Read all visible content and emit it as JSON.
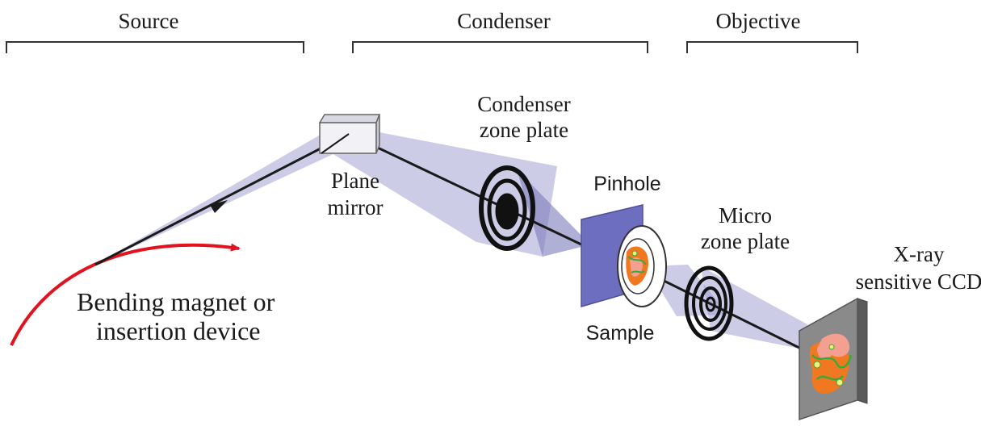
{
  "sections": {
    "source": "Source",
    "condenser": "Condenser",
    "objective": "Objective"
  },
  "labels": {
    "source_device_line1": "Bending magnet or",
    "source_device_line2": "insertion device",
    "mirror_line1": "Plane",
    "mirror_line2": "mirror",
    "condenser_zp_line1": "Condenser",
    "condenser_zp_line2": "zone plate",
    "pinhole": "Pinhole",
    "sample": "Sample",
    "micro_zp_line1": "Micro",
    "micro_zp_line2": "zone plate",
    "detector_line1": "X-ray",
    "detector_line2": "sensitive CCD"
  },
  "colors": {
    "beam": "#9a9ad0",
    "pinhole_plate": "#6e6ec0",
    "electron_path": "#e0141e",
    "ray": "#1a1a1a",
    "ccd_face": "#8a8a8a",
    "specimen_orange": "#f07820",
    "specimen_pink": "#f4a090",
    "specimen_green": "#3aa83a",
    "specimen_yellow": "#f0f07a"
  }
}
